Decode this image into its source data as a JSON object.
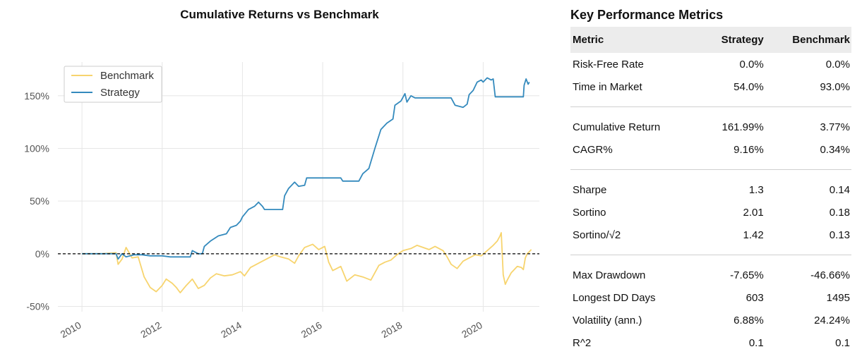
{
  "chart_data": {
    "type": "line",
    "title": "Cumulative Returns vs Benchmark",
    "xlabel": "",
    "ylabel": "",
    "xlim": [
      2009.4,
      2021.4
    ],
    "ylim": [
      -55,
      182
    ],
    "x_ticks": [
      2010,
      2012,
      2014,
      2016,
      2018,
      2020
    ],
    "x_tick_labels": [
      "2010",
      "2012",
      "2014",
      "2016",
      "2018",
      "2020"
    ],
    "y_ticks": [
      -50,
      0,
      50,
      100,
      150
    ],
    "y_tick_labels": [
      "-50%",
      "0%",
      "50%",
      "100%",
      "150%"
    ],
    "grid": true,
    "legend_position": "top-left",
    "zero_line": {
      "y": 0,
      "style": "dashed",
      "color": "#000000"
    },
    "series": [
      {
        "name": "Benchmark",
        "color": "#f7d46e",
        "points": [
          [
            2010.0,
            0
          ],
          [
            2010.5,
            0
          ],
          [
            2010.85,
            1
          ],
          [
            2010.9,
            -10
          ],
          [
            2011.0,
            -5
          ],
          [
            2011.1,
            6
          ],
          [
            2011.25,
            -4
          ],
          [
            2011.4,
            -3
          ],
          [
            2011.55,
            -22
          ],
          [
            2011.7,
            -32
          ],
          [
            2011.85,
            -36
          ],
          [
            2012.0,
            -30
          ],
          [
            2012.1,
            -24
          ],
          [
            2012.25,
            -28
          ],
          [
            2012.35,
            -32
          ],
          [
            2012.45,
            -37
          ],
          [
            2012.6,
            -30
          ],
          [
            2012.75,
            -24
          ],
          [
            2012.9,
            -33
          ],
          [
            2013.05,
            -30
          ],
          [
            2013.2,
            -23
          ],
          [
            2013.35,
            -19
          ],
          [
            2013.55,
            -21
          ],
          [
            2013.75,
            -20
          ],
          [
            2013.95,
            -17
          ],
          [
            2014.05,
            -21
          ],
          [
            2014.2,
            -13
          ],
          [
            2014.35,
            -10
          ],
          [
            2014.5,
            -7
          ],
          [
            2014.65,
            -4
          ],
          [
            2014.8,
            -1
          ],
          [
            2014.95,
            -3
          ],
          [
            2015.15,
            -5
          ],
          [
            2015.3,
            -9
          ],
          [
            2015.4,
            -2
          ],
          [
            2015.55,
            6
          ],
          [
            2015.75,
            9
          ],
          [
            2015.9,
            4
          ],
          [
            2016.05,
            7
          ],
          [
            2016.15,
            -8
          ],
          [
            2016.25,
            -16
          ],
          [
            2016.45,
            -12
          ],
          [
            2016.6,
            -26
          ],
          [
            2016.8,
            -20
          ],
          [
            2017.0,
            -22
          ],
          [
            2017.2,
            -25
          ],
          [
            2017.4,
            -11
          ],
          [
            2017.55,
            -8
          ],
          [
            2017.7,
            -6
          ],
          [
            2017.85,
            -1
          ],
          [
            2018.0,
            3
          ],
          [
            2018.2,
            5
          ],
          [
            2018.35,
            8
          ],
          [
            2018.5,
            6
          ],
          [
            2018.65,
            4
          ],
          [
            2018.8,
            7
          ],
          [
            2019.0,
            3
          ],
          [
            2019.1,
            -3
          ],
          [
            2019.2,
            -10
          ],
          [
            2019.35,
            -14
          ],
          [
            2019.5,
            -7
          ],
          [
            2019.65,
            -4
          ],
          [
            2019.8,
            -1
          ],
          [
            2019.95,
            -2
          ],
          [
            2020.1,
            3
          ],
          [
            2020.25,
            8
          ],
          [
            2020.35,
            12
          ],
          [
            2020.42,
            17
          ],
          [
            2020.45,
            20
          ],
          [
            2020.5,
            -20
          ],
          [
            2020.55,
            -29
          ],
          [
            2020.6,
            -25
          ],
          [
            2020.7,
            -18
          ],
          [
            2020.85,
            -12
          ],
          [
            2020.95,
            -13
          ],
          [
            2021.0,
            -15
          ],
          [
            2021.05,
            -4
          ],
          [
            2021.1,
            0
          ],
          [
            2021.15,
            2
          ],
          [
            2021.2,
            4
          ]
        ]
      },
      {
        "name": "Strategy",
        "color": "#348abd",
        "points": [
          [
            2010.0,
            0
          ],
          [
            2010.85,
            0
          ],
          [
            2010.9,
            -5
          ],
          [
            2011.0,
            0
          ],
          [
            2011.1,
            -3
          ],
          [
            2011.3,
            -1
          ],
          [
            2011.5,
            -1
          ],
          [
            2011.7,
            -2
          ],
          [
            2012.0,
            -2
          ],
          [
            2012.2,
            -3
          ],
          [
            2012.4,
            -3
          ],
          [
            2012.7,
            -3
          ],
          [
            2012.75,
            3
          ],
          [
            2012.9,
            0
          ],
          [
            2013.0,
            0
          ],
          [
            2013.05,
            7
          ],
          [
            2013.2,
            12
          ],
          [
            2013.4,
            17
          ],
          [
            2013.6,
            19
          ],
          [
            2013.7,
            25
          ],
          [
            2013.85,
            27
          ],
          [
            2013.95,
            31
          ],
          [
            2014.0,
            35
          ],
          [
            2014.15,
            42
          ],
          [
            2014.3,
            45
          ],
          [
            2014.4,
            49
          ],
          [
            2014.5,
            45
          ],
          [
            2014.55,
            42
          ],
          [
            2015.0,
            42
          ],
          [
            2015.05,
            55
          ],
          [
            2015.15,
            62
          ],
          [
            2015.3,
            68
          ],
          [
            2015.4,
            64
          ],
          [
            2015.55,
            65
          ],
          [
            2015.6,
            72
          ],
          [
            2016.0,
            72
          ],
          [
            2016.2,
            72
          ],
          [
            2016.3,
            72
          ],
          [
            2016.45,
            72
          ],
          [
            2016.5,
            69
          ],
          [
            2016.9,
            69
          ],
          [
            2017.0,
            76
          ],
          [
            2017.15,
            81
          ],
          [
            2017.3,
            100
          ],
          [
            2017.45,
            118
          ],
          [
            2017.6,
            124
          ],
          [
            2017.75,
            128
          ],
          [
            2017.8,
            141
          ],
          [
            2017.95,
            145
          ],
          [
            2018.05,
            152
          ],
          [
            2018.1,
            144
          ],
          [
            2018.2,
            150
          ],
          [
            2018.3,
            148
          ],
          [
            2019.2,
            148
          ],
          [
            2019.3,
            141
          ],
          [
            2019.5,
            139
          ],
          [
            2019.6,
            142
          ],
          [
            2019.65,
            151
          ],
          [
            2019.75,
            155
          ],
          [
            2019.85,
            163
          ],
          [
            2019.95,
            165
          ],
          [
            2020.0,
            163
          ],
          [
            2020.1,
            167
          ],
          [
            2020.2,
            165
          ],
          [
            2020.25,
            166
          ],
          [
            2020.3,
            149
          ],
          [
            2021.0,
            149
          ],
          [
            2021.02,
            160
          ],
          [
            2021.07,
            166
          ],
          [
            2021.12,
            161
          ],
          [
            2021.15,
            163
          ]
        ]
      }
    ]
  },
  "metrics": {
    "title": "Key Performance Metrics",
    "columns": [
      "Metric",
      "Strategy",
      "Benchmark"
    ],
    "groups": [
      [
        [
          "Risk-Free Rate",
          "0.0%",
          "0.0%"
        ],
        [
          "Time in Market",
          "54.0%",
          "93.0%"
        ]
      ],
      [
        [
          "Cumulative Return",
          "161.99%",
          "3.77%"
        ],
        [
          "CAGR%",
          "9.16%",
          "0.34%"
        ]
      ],
      [
        [
          "Sharpe",
          "1.3",
          "0.14"
        ],
        [
          "Sortino",
          "2.01",
          "0.18"
        ],
        [
          "Sortino/√2",
          "1.42",
          "0.13"
        ]
      ],
      [
        [
          "Max Drawdown",
          "-7.65%",
          "-46.66%"
        ],
        [
          "Longest DD Days",
          "603",
          "1495"
        ],
        [
          "Volatility (ann.)",
          "6.88%",
          "24.24%"
        ],
        [
          "R^2",
          "0.1",
          "0.1"
        ]
      ]
    ]
  }
}
